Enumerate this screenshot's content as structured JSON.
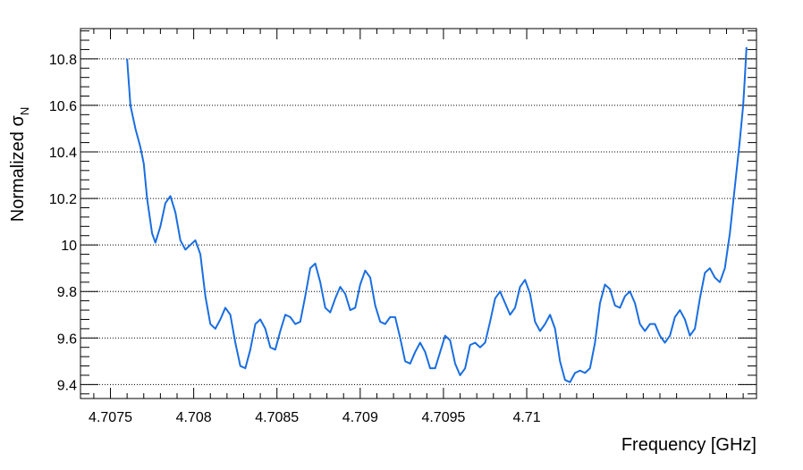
{
  "chart_data": {
    "type": "line",
    "xlabel": "Frequency [GHz]",
    "ylabel_main": "Normalized σ",
    "ylabel_sub": "N",
    "xlim": [
      4.70732,
      4.71138
    ],
    "ylim": [
      9.34,
      10.93
    ],
    "grid": "horizontal dotted at major y ticks",
    "x_ticks": [
      {
        "value": 4.7075,
        "label": "4.7075"
      },
      {
        "value": 4.708,
        "label": "4.708"
      },
      {
        "value": 4.7085,
        "label": "4.7085"
      },
      {
        "value": 4.709,
        "label": "4.709"
      },
      {
        "value": 4.7095,
        "label": "4.7095"
      },
      {
        "value": 4.71,
        "label": "4.71"
      }
    ],
    "y_ticks": [
      {
        "value": 9.4,
        "label": "9.4"
      },
      {
        "value": 9.6,
        "label": "9.6"
      },
      {
        "value": 9.8,
        "label": "9.8"
      },
      {
        "value": 10.0,
        "label": "10"
      },
      {
        "value": 10.2,
        "label": "10.2"
      },
      {
        "value": 10.4,
        "label": "10.4"
      },
      {
        "value": 10.6,
        "label": "10.6"
      },
      {
        "value": 10.8,
        "label": "10.8"
      }
    ],
    "series": [
      {
        "color": "#1a6ee0",
        "points": [
          [
            4.7076,
            10.8
          ],
          [
            4.70762,
            10.6
          ],
          [
            4.70765,
            10.5
          ],
          [
            4.70768,
            10.42
          ],
          [
            4.7077,
            10.35
          ],
          [
            4.70772,
            10.2
          ],
          [
            4.70775,
            10.05
          ],
          [
            4.70777,
            10.01
          ],
          [
            4.7078,
            10.08
          ],
          [
            4.70783,
            10.18
          ],
          [
            4.70786,
            10.21
          ],
          [
            4.70789,
            10.14
          ],
          [
            4.70792,
            10.02
          ],
          [
            4.70795,
            9.98
          ],
          [
            4.70798,
            10.0
          ],
          [
            4.70801,
            10.02
          ],
          [
            4.70804,
            9.96
          ],
          [
            4.70807,
            9.78
          ],
          [
            4.7081,
            9.66
          ],
          [
            4.70813,
            9.64
          ],
          [
            4.70816,
            9.68
          ],
          [
            4.70819,
            9.73
          ],
          [
            4.70822,
            9.7
          ],
          [
            4.70825,
            9.58
          ],
          [
            4.70828,
            9.48
          ],
          [
            4.70831,
            9.47
          ],
          [
            4.70834,
            9.55
          ],
          [
            4.70837,
            9.66
          ],
          [
            4.7084,
            9.68
          ],
          [
            4.70843,
            9.64
          ],
          [
            4.70846,
            9.56
          ],
          [
            4.70849,
            9.55
          ],
          [
            4.70852,
            9.63
          ],
          [
            4.70855,
            9.7
          ],
          [
            4.70858,
            9.69
          ],
          [
            4.70861,
            9.66
          ],
          [
            4.70864,
            9.67
          ],
          [
            4.70867,
            9.78
          ],
          [
            4.7087,
            9.9
          ],
          [
            4.70873,
            9.92
          ],
          [
            4.70876,
            9.84
          ],
          [
            4.70879,
            9.73
          ],
          [
            4.70882,
            9.71
          ],
          [
            4.70885,
            9.77
          ],
          [
            4.70888,
            9.82
          ],
          [
            4.70891,
            9.79
          ],
          [
            4.70894,
            9.72
          ],
          [
            4.70897,
            9.73
          ],
          [
            4.709,
            9.83
          ],
          [
            4.70903,
            9.89
          ],
          [
            4.70906,
            9.86
          ],
          [
            4.70909,
            9.74
          ],
          [
            4.70912,
            9.67
          ],
          [
            4.70915,
            9.66
          ],
          [
            4.70918,
            9.69
          ],
          [
            4.70921,
            9.69
          ],
          [
            4.70924,
            9.6
          ],
          [
            4.70927,
            9.5
          ],
          [
            4.7093,
            9.49
          ],
          [
            4.70933,
            9.54
          ],
          [
            4.70936,
            9.58
          ],
          [
            4.70939,
            9.54
          ],
          [
            4.70942,
            9.47
          ],
          [
            4.70945,
            9.47
          ],
          [
            4.70948,
            9.54
          ],
          [
            4.70951,
            9.61
          ],
          [
            4.70954,
            9.59
          ],
          [
            4.70957,
            9.49
          ],
          [
            4.7096,
            9.44
          ],
          [
            4.70963,
            9.47
          ],
          [
            4.70966,
            9.57
          ],
          [
            4.70969,
            9.58
          ],
          [
            4.70972,
            9.56
          ],
          [
            4.70975,
            9.58
          ],
          [
            4.70978,
            9.67
          ],
          [
            4.70981,
            9.77
          ],
          [
            4.70984,
            9.8
          ],
          [
            4.70987,
            9.75
          ],
          [
            4.7099,
            9.7
          ],
          [
            4.70993,
            9.73
          ],
          [
            4.70996,
            9.82
          ],
          [
            4.70999,
            9.85
          ],
          [
            4.71002,
            9.79
          ],
          [
            4.71005,
            9.67
          ],
          [
            4.71008,
            9.63
          ],
          [
            4.71011,
            9.66
          ],
          [
            4.71014,
            9.7
          ],
          [
            4.71017,
            9.64
          ],
          [
            4.7102,
            9.5
          ],
          [
            4.71023,
            9.42
          ],
          [
            4.71026,
            9.41
          ],
          [
            4.71029,
            9.45
          ],
          [
            4.71032,
            9.46
          ],
          [
            4.71035,
            9.45
          ],
          [
            4.71038,
            9.47
          ],
          [
            4.71041,
            9.58
          ],
          [
            4.71044,
            9.75
          ],
          [
            4.71047,
            9.83
          ],
          [
            4.7105,
            9.81
          ],
          [
            4.71053,
            9.74
          ],
          [
            4.71056,
            9.73
          ],
          [
            4.71059,
            9.78
          ],
          [
            4.71062,
            9.8
          ],
          [
            4.71065,
            9.75
          ],
          [
            4.71068,
            9.66
          ],
          [
            4.71071,
            9.63
          ],
          [
            4.71074,
            9.66
          ],
          [
            4.71077,
            9.66
          ],
          [
            4.7108,
            9.61
          ],
          [
            4.71083,
            9.58
          ],
          [
            4.71086,
            9.61
          ],
          [
            4.71089,
            9.69
          ],
          [
            4.71092,
            9.72
          ],
          [
            4.71095,
            9.68
          ],
          [
            4.71098,
            9.61
          ],
          [
            4.71101,
            9.64
          ],
          [
            4.71104,
            9.77
          ],
          [
            4.71107,
            9.88
          ],
          [
            4.7111,
            9.9
          ],
          [
            4.71113,
            9.86
          ],
          [
            4.71116,
            9.84
          ],
          [
            4.71119,
            9.9
          ],
          [
            4.71122,
            10.05
          ],
          [
            4.71125,
            10.25
          ],
          [
            4.71128,
            10.45
          ],
          [
            4.7113,
            10.6
          ],
          [
            4.71131,
            10.72
          ],
          [
            4.71132,
            10.85
          ]
        ]
      }
    ]
  }
}
